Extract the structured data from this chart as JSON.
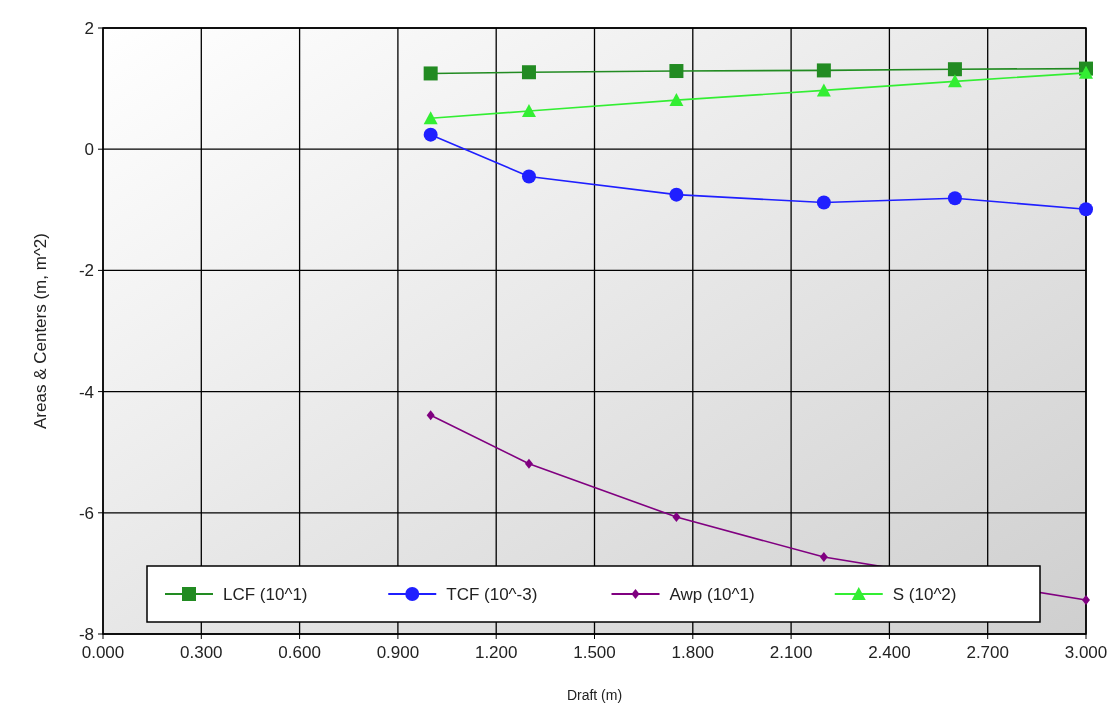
{
  "chart_data": {
    "type": "line",
    "xlabel": "Draft (m)",
    "ylabel": "Areas & Centers (m, m^2)",
    "x": [
      1.0,
      1.3,
      1.75,
      2.2,
      2.6,
      3.0
    ],
    "series": [
      {
        "name": "LCF (10^1)",
        "color": "#228b22",
        "marker": "square",
        "values": [
          1.25,
          1.27,
          1.29,
          1.3,
          1.32,
          1.33
        ]
      },
      {
        "name": "TCF (10^-3)",
        "color": "#1f1fff",
        "marker": "circle",
        "values": [
          0.24,
          -0.45,
          -0.75,
          -0.88,
          -0.81,
          -0.99
        ]
      },
      {
        "name": "Awp (10^1)",
        "color": "#800080",
        "marker": "diamond",
        "values": [
          -4.39,
          -5.19,
          -6.07,
          -6.73,
          null,
          -7.44
        ]
      },
      {
        "name": "S (10^2)",
        "color": "#33ee33",
        "marker": "triangle",
        "values": [
          0.51,
          0.63,
          0.81,
          0.97,
          1.12,
          1.26
        ]
      }
    ],
    "xlim": [
      0,
      3
    ],
    "xticks": [
      {
        "value": 0,
        "label": "0.000"
      },
      {
        "value": 0.3,
        "label": "0.300"
      },
      {
        "value": 0.6,
        "label": "0.600"
      },
      {
        "value": 0.9,
        "label": "0.900"
      },
      {
        "value": 1.2,
        "label": "1.200"
      },
      {
        "value": 1.5,
        "label": "1.500"
      },
      {
        "value": 1.8,
        "label": "1.800"
      },
      {
        "value": 2.1,
        "label": "2.100"
      },
      {
        "value": 2.4,
        "label": "2.400"
      },
      {
        "value": 2.7,
        "label": "2.700"
      },
      {
        "value": 3.0,
        "label": "3.000"
      }
    ],
    "ylim": [
      -8,
      2
    ],
    "yticks": [
      -8,
      -6,
      -4,
      -2,
      0,
      2
    ],
    "grid": true,
    "legend": "bottom",
    "line_style": "solid"
  }
}
